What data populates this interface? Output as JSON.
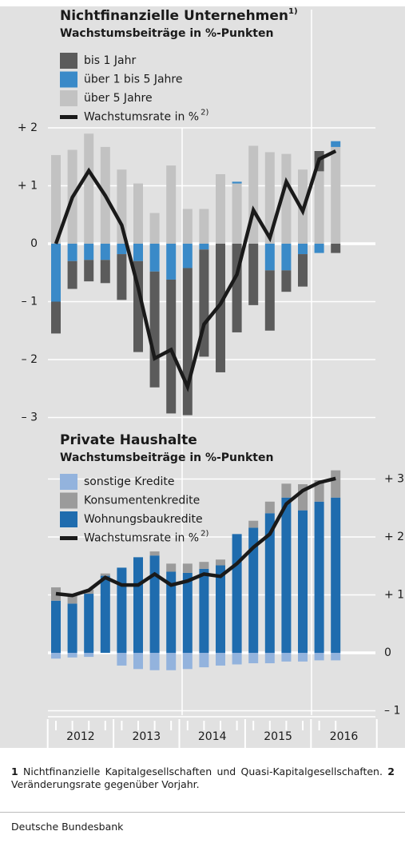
{
  "chart_data": [
    {
      "type": "bar",
      "stacked": true,
      "title": "Nichtfinanzielle Unternehmen",
      "title_note": "1)",
      "subtitle": "Wachstumsbeiträge in %-Punkten",
      "y_side": "left",
      "ylim": [
        -3,
        2
      ],
      "yticks": [
        {
          "value": 2,
          "label": "+ 2"
        },
        {
          "value": 1,
          "label": "+ 1"
        },
        0,
        {
          "value": -1,
          "label": "– 1"
        },
        {
          "value": -2,
          "label": "– 2"
        },
        {
          "value": -3,
          "label": "– 3"
        }
      ],
      "series": [
        {
          "name": "bis 1 Jahr",
          "color": "#5b5b5b",
          "values": [
            -0.55,
            -0.48,
            -0.37,
            -0.4,
            -0.79,
            -1.57,
            -2.0,
            -2.31,
            -2.54,
            -1.85,
            -2.22,
            -1.53,
            -1.06,
            -1.04,
            -0.37,
            -0.56,
            0.35,
            -0.16
          ]
        },
        {
          "name": "über 1 bis 5 Jahre",
          "color": "#3a8ac8",
          "values": [
            -1.0,
            -0.3,
            -0.28,
            -0.28,
            -0.18,
            -0.3,
            -0.48,
            -0.62,
            -0.42,
            -0.1,
            0,
            0.03,
            0,
            -0.46,
            -0.46,
            -0.18,
            -0.16,
            0.1
          ]
        },
        {
          "name": "über 5 Jahre",
          "color": "#c2c2c2",
          "values": [
            1.53,
            1.62,
            1.9,
            1.67,
            1.28,
            1.04,
            0.53,
            1.35,
            0.6,
            0.6,
            1.2,
            1.04,
            1.69,
            1.58,
            1.55,
            1.28,
            1.25,
            1.67
          ]
        },
        {
          "name": "Wachstumsrate in %",
          "name_note": "2)",
          "type": "line",
          "color": "#1a1a1a",
          "values": [
            0.0,
            0.8,
            1.26,
            0.83,
            0.32,
            -0.76,
            -1.98,
            -1.83,
            -2.47,
            -1.39,
            -1.04,
            -0.53,
            0.58,
            0.1,
            1.07,
            0.56,
            1.46,
            1.6
          ]
        }
      ]
    },
    {
      "type": "bar",
      "stacked": true,
      "title": "Private Haushalte",
      "subtitle": "Wachstumsbeiträge in %-Punkten",
      "y_side": "right",
      "ylim": [
        -1,
        3
      ],
      "yticks": [
        {
          "value": 3,
          "label": "+ 3"
        },
        {
          "value": 2,
          "label": "+ 2"
        },
        {
          "value": 1,
          "label": "+ 1"
        },
        0,
        {
          "value": -1,
          "label": "– 1"
        }
      ],
      "series": [
        {
          "name": "sonstige Kredite",
          "color": "#93b3dd",
          "values": [
            -0.1,
            -0.08,
            -0.07,
            0,
            -0.22,
            -0.28,
            -0.3,
            -0.3,
            -0.28,
            -0.25,
            -0.22,
            -0.2,
            -0.18,
            -0.18,
            -0.15,
            -0.15,
            -0.13,
            -0.13
          ]
        },
        {
          "name": "Konsumentenkredite",
          "color": "#9b9b9b",
          "values": [
            0.23,
            0.14,
            0.07,
            0.04,
            0,
            0,
            0.07,
            0.14,
            0.16,
            0.12,
            0.1,
            0,
            0.12,
            0.2,
            0.24,
            0.45,
            0.37,
            0.47
          ]
        },
        {
          "name": "Wohnungsbaukredite",
          "color": "#1f6cae",
          "values": [
            0.9,
            0.85,
            1.02,
            1.33,
            1.47,
            1.65,
            1.68,
            1.4,
            1.38,
            1.45,
            1.51,
            2.05,
            2.16,
            2.41,
            2.68,
            2.46,
            2.61,
            2.68
          ]
        },
        {
          "name": "Wachstumsrate in %",
          "name_note": "2)",
          "type": "line",
          "color": "#1a1a1a",
          "values": [
            1.02,
            0.99,
            1.08,
            1.3,
            1.17,
            1.17,
            1.36,
            1.17,
            1.24,
            1.36,
            1.32,
            1.54,
            1.82,
            2.05,
            2.57,
            2.8,
            2.94,
            3.01
          ]
        }
      ]
    }
  ],
  "x_axis": {
    "categories": [
      "2012",
      "2013",
      "2014",
      "2015",
      "2016"
    ]
  },
  "footnotes": [
    {
      "number": "1",
      "text": "Nichtfinanzielle Kapitalgesellschaften und Quasi-Kapitalgesellschaften."
    },
    {
      "number": "2",
      "text": "Veränderungsrate gegenüber Vorjahr."
    }
  ],
  "source": "Deutsche Bundesbank"
}
